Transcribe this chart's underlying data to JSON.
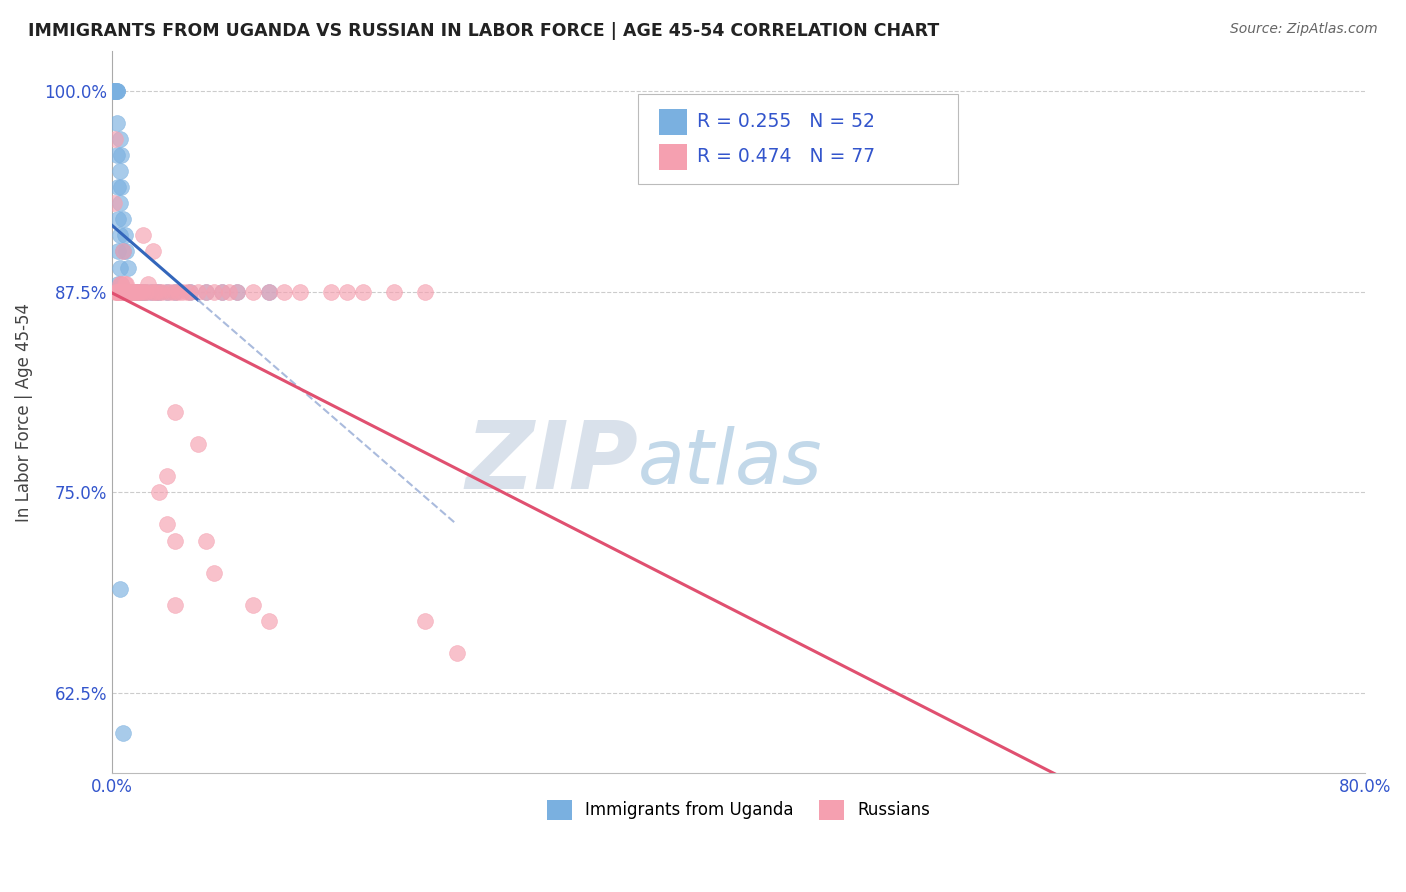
{
  "title": "IMMIGRANTS FROM UGANDA VS RUSSIAN IN LABOR FORCE | AGE 45-54 CORRELATION CHART",
  "source": "Source: ZipAtlas.com",
  "ylabel": "In Labor Force | Age 45-54",
  "legend_label1": "Immigrants from Uganda",
  "legend_label2": "Russians",
  "R1": 0.255,
  "N1": 52,
  "R2": 0.474,
  "N2": 77,
  "xlim": [
    0.0,
    0.8
  ],
  "ylim": [
    0.575,
    1.025
  ],
  "yticks": [
    0.625,
    0.75,
    0.875,
    1.0
  ],
  "ytick_labels": [
    "62.5%",
    "75.0%",
    "87.5%",
    "100.0%"
  ],
  "xtick_labels_show": [
    "0.0%",
    "80.0%"
  ],
  "color_uganda": "#7ab0e0",
  "color_russia": "#f5a0b0",
  "color_uganda_line": "#3366bb",
  "color_russia_line": "#e05070",
  "color_axis_labels": "#3355cc",
  "watermark_zip": "ZIP",
  "watermark_atlas": "atlas",
  "uganda_x": [
    0.001,
    0.001,
    0.001,
    0.002,
    0.002,
    0.003,
    0.003,
    0.003,
    0.003,
    0.003,
    0.004,
    0.004,
    0.004,
    0.004,
    0.005,
    0.005,
    0.005,
    0.005,
    0.005,
    0.006,
    0.006,
    0.006,
    0.007,
    0.007,
    0.007,
    0.008,
    0.008,
    0.009,
    0.009,
    0.01,
    0.01,
    0.011,
    0.012,
    0.013,
    0.014,
    0.015,
    0.016,
    0.018,
    0.02,
    0.022,
    0.025,
    0.028,
    0.03,
    0.035,
    0.04,
    0.05,
    0.06,
    0.07,
    0.08,
    0.1,
    0.005,
    0.007
  ],
  "uganda_y": [
    1.0,
    1.0,
    1.0,
    1.0,
    1.0,
    1.0,
    1.0,
    1.0,
    0.98,
    0.96,
    0.94,
    0.92,
    0.9,
    0.88,
    0.97,
    0.95,
    0.93,
    0.91,
    0.89,
    0.96,
    0.94,
    0.88,
    0.92,
    0.9,
    0.875,
    0.91,
    0.875,
    0.9,
    0.875,
    0.89,
    0.875,
    0.875,
    0.875,
    0.875,
    0.875,
    0.875,
    0.875,
    0.875,
    0.875,
    0.875,
    0.875,
    0.875,
    0.875,
    0.875,
    0.875,
    0.875,
    0.875,
    0.875,
    0.875,
    0.875,
    0.69,
    0.6
  ],
  "russia_x": [
    0.001,
    0.002,
    0.002,
    0.003,
    0.003,
    0.004,
    0.004,
    0.005,
    0.005,
    0.005,
    0.006,
    0.006,
    0.007,
    0.007,
    0.008,
    0.008,
    0.009,
    0.009,
    0.01,
    0.01,
    0.011,
    0.011,
    0.012,
    0.012,
    0.013,
    0.014,
    0.015,
    0.015,
    0.016,
    0.017,
    0.018,
    0.019,
    0.02,
    0.021,
    0.022,
    0.023,
    0.025,
    0.026,
    0.027,
    0.028,
    0.03,
    0.032,
    0.035,
    0.038,
    0.04,
    0.042,
    0.045,
    0.048,
    0.05,
    0.055,
    0.06,
    0.065,
    0.07,
    0.075,
    0.08,
    0.09,
    0.1,
    0.11,
    0.12,
    0.14,
    0.15,
    0.16,
    0.18,
    0.2,
    0.04,
    0.055,
    0.035,
    0.04,
    0.03,
    0.035,
    0.06,
    0.065,
    0.04,
    0.09,
    0.1,
    0.2,
    0.22
  ],
  "russia_y": [
    0.93,
    0.97,
    0.875,
    0.875,
    0.875,
    0.875,
    0.875,
    0.875,
    0.875,
    0.88,
    0.875,
    0.88,
    0.875,
    0.9,
    0.875,
    0.88,
    0.875,
    0.88,
    0.875,
    0.875,
    0.875,
    0.875,
    0.875,
    0.875,
    0.875,
    0.875,
    0.875,
    0.875,
    0.875,
    0.875,
    0.875,
    0.875,
    0.91,
    0.875,
    0.875,
    0.88,
    0.875,
    0.9,
    0.875,
    0.875,
    0.875,
    0.875,
    0.875,
    0.875,
    0.875,
    0.875,
    0.875,
    0.875,
    0.875,
    0.875,
    0.875,
    0.875,
    0.875,
    0.875,
    0.875,
    0.875,
    0.875,
    0.875,
    0.875,
    0.875,
    0.875,
    0.875,
    0.875,
    0.875,
    0.8,
    0.78,
    0.76,
    0.72,
    0.75,
    0.73,
    0.72,
    0.7,
    0.68,
    0.68,
    0.67,
    0.67,
    0.65
  ]
}
